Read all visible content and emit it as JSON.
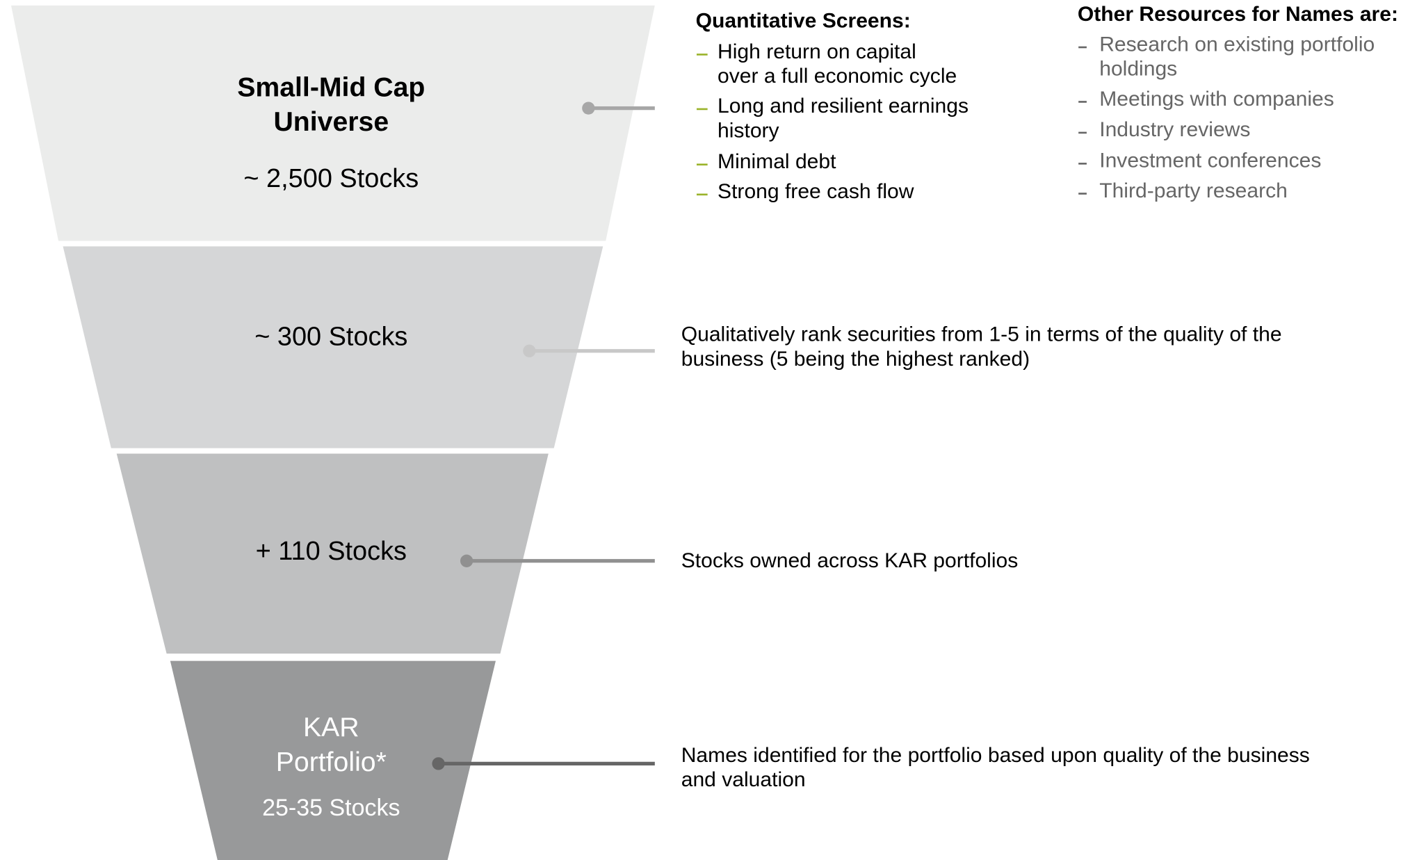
{
  "stages": [
    {
      "title": [
        "Small-Mid Cap",
        "Universe"
      ],
      "count": "~ 2,500 Stocks"
    },
    {
      "count": "~ 300 Stocks",
      "description": [
        "Qualitatively rank securities from 1-5 in terms of the quality of the",
        "business (5 being the highest ranked)"
      ]
    },
    {
      "count": "+ 110 Stocks",
      "description": [
        "Stocks owned across KAR portfolios"
      ]
    },
    {
      "title": [
        "KAR",
        "Portfolio*"
      ],
      "count": "25-35 Stocks",
      "description": [
        "Names identified for the portfolio based upon quality of the business",
        "and valuation"
      ]
    }
  ],
  "quantitative_screens": {
    "heading": "Quantitative Screens:",
    "items": [
      [
        "High return on capital",
        "over a full economic cycle"
      ],
      [
        "Long and resilient earnings",
        "history"
      ],
      [
        "Minimal debt"
      ],
      [
        "Strong free cash flow"
      ]
    ]
  },
  "other_resources": {
    "heading": "Other Resources for Names are:",
    "items": [
      [
        "Research on existing portfolio",
        "holdings"
      ],
      [
        "Meetings with companies"
      ],
      [
        "Industry reviews"
      ],
      [
        "Investment conferences"
      ],
      [
        "Third-party research"
      ]
    ]
  }
}
